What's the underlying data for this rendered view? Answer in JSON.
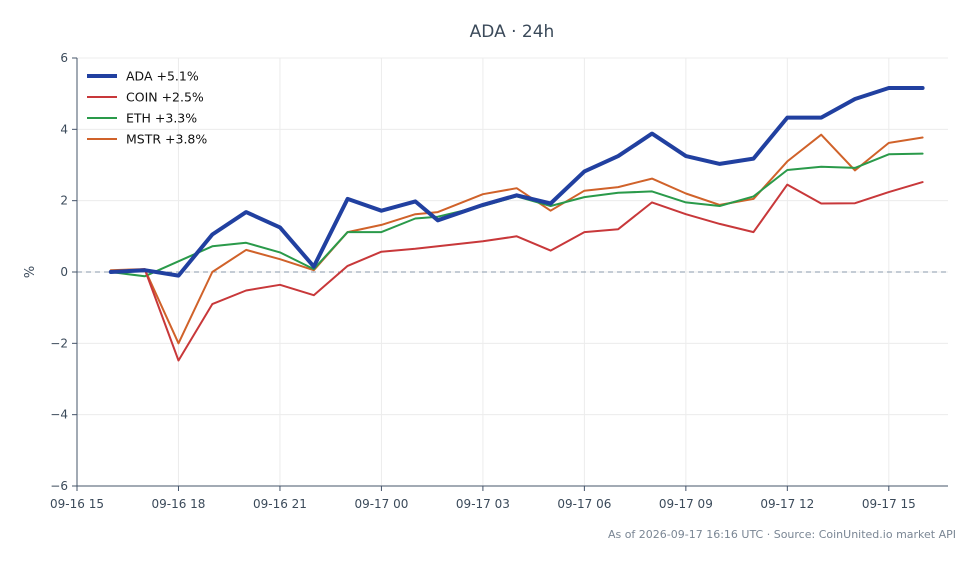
{
  "chart_data": {
    "type": "line",
    "title": "ADA · 24h",
    "ylabel": "%",
    "xlabel": "",
    "ylim": [
      -6,
      6
    ],
    "yticks": [
      -6,
      -4,
      -2,
      0,
      2,
      4,
      6
    ],
    "ytick_labels": [
      "−6",
      "−4",
      "−2",
      "0",
      "2",
      "4",
      "6"
    ],
    "xlim": [
      "09-16 15:00",
      "09-17 16:45"
    ],
    "xticks": [
      {
        "t": "09-16 15:00",
        "label": "09-16 15"
      },
      {
        "t": "09-16 18:00",
        "label": "09-16 18"
      },
      {
        "t": "09-16 21:00",
        "label": "09-16 21"
      },
      {
        "t": "09-17 00:00",
        "label": "09-17 00"
      },
      {
        "t": "09-17 03:00",
        "label": "09-17 03"
      },
      {
        "t": "09-17 06:00",
        "label": "09-17 06"
      },
      {
        "t": "09-17 09:00",
        "label": "09-17 09"
      },
      {
        "t": "09-17 12:00",
        "label": "09-17 12"
      },
      {
        "t": "09-17 15:00",
        "label": "09-17 15"
      }
    ],
    "grid": true,
    "zero_line": true,
    "legend_position": "top-left",
    "x": [
      "09-16 16:00",
      "09-16 17:00",
      "09-16 18:00",
      "09-16 19:00",
      "09-16 20:00",
      "09-16 21:00",
      "09-16 22:00",
      "09-16 23:00",
      "09-17 00:00",
      "09-17 01:00",
      "09-17 01:40",
      "09-17 03:00",
      "09-17 04:00",
      "09-17 05:00",
      "09-17 06:00",
      "09-17 07:00",
      "09-17 08:00",
      "09-17 09:00",
      "09-17 10:00",
      "09-17 11:00",
      "09-17 12:00",
      "09-17 13:00",
      "09-17 14:00",
      "09-17 15:00",
      "09-17 16:00"
    ],
    "series": [
      {
        "name": "ADA +5.1%",
        "color": "#2140a0",
        "width": 4,
        "values": [
          0.0,
          0.05,
          -0.1,
          1.05,
          1.68,
          1.25,
          0.15,
          2.05,
          1.72,
          1.98,
          1.45,
          1.88,
          2.15,
          1.92,
          2.82,
          3.25,
          3.88,
          3.25,
          3.03,
          3.18,
          4.33,
          4.33,
          4.85,
          5.16,
          5.16
        ]
      },
      {
        "name": "COIN +2.5%",
        "color": "#c8383a",
        "width": 2,
        "values": [
          0.0,
          0.08,
          -2.48,
          -0.9,
          -0.52,
          -0.36,
          -0.65,
          0.17,
          0.57,
          0.65,
          0.72,
          0.86,
          1.0,
          0.6,
          1.12,
          1.2,
          1.95,
          1.62,
          1.35,
          1.12,
          2.45,
          1.92,
          1.93,
          2.24,
          2.52
        ]
      },
      {
        "name": "ETH +3.3%",
        "color": "#2a9a4a",
        "width": 2,
        "values": [
          0.0,
          -0.12,
          0.3,
          0.72,
          0.82,
          0.55,
          0.08,
          1.12,
          1.12,
          1.5,
          1.55,
          1.85,
          2.12,
          1.85,
          2.1,
          2.22,
          2.26,
          1.95,
          1.85,
          2.12,
          2.86,
          2.95,
          2.92,
          3.3,
          3.32
        ]
      },
      {
        "name": "MSTR +3.8%",
        "color": "#d0622a",
        "width": 2,
        "values": [
          0.05,
          0.08,
          -2.0,
          0.0,
          0.62,
          0.36,
          0.05,
          1.12,
          1.32,
          1.62,
          1.68,
          2.18,
          2.35,
          1.72,
          2.28,
          2.38,
          2.62,
          2.2,
          1.88,
          2.05,
          3.1,
          3.85,
          2.85,
          3.62,
          3.77
        ]
      }
    ],
    "footer": "As of 2026-09-17 16:16 UTC · Source: CoinUnited.io market API"
  }
}
